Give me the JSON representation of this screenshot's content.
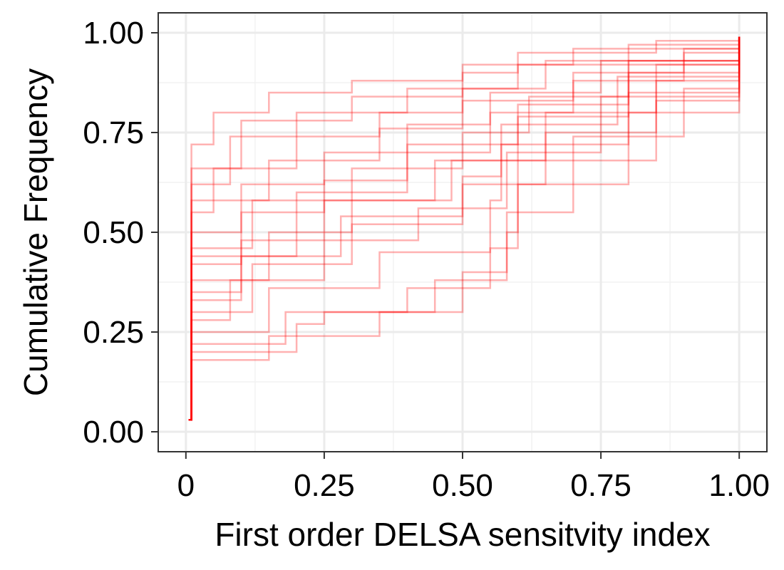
{
  "chart_data": {
    "type": "line",
    "subtype": "step-ecdf",
    "title": "",
    "xlabel": "First order DELSA sensitvity index",
    "ylabel": "Cumulative Frequency",
    "xlim": [
      -0.05,
      1.05
    ],
    "ylim": [
      -0.05,
      1.05
    ],
    "x_ticks": [
      {
        "value": 0,
        "label": "0"
      },
      {
        "value": 0.25,
        "label": "0.25"
      },
      {
        "value": 0.5,
        "label": "0.50"
      },
      {
        "value": 0.75,
        "label": "0.75"
      },
      {
        "value": 1.0,
        "label": "1.00"
      }
    ],
    "y_ticks": [
      {
        "value": 0,
        "label": "0.00"
      },
      {
        "value": 0.25,
        "label": "0.25"
      },
      {
        "value": 0.5,
        "label": "0.50"
      },
      {
        "value": 0.75,
        "label": "0.75"
      },
      {
        "value": 1.0,
        "label": "1.00"
      }
    ],
    "grid": true,
    "legend": "none",
    "line_color": "#ff0000",
    "line_opacity": 0.3,
    "series": [
      {
        "values": [
          [
            0.005,
            0.03
          ],
          [
            0.01,
            0.72
          ],
          [
            0.05,
            0.8
          ],
          [
            0.15,
            0.85
          ],
          [
            0.3,
            0.88
          ],
          [
            0.5,
            0.92
          ],
          [
            0.7,
            0.96
          ],
          [
            1.0,
            0.99
          ]
        ]
      },
      {
        "values": [
          [
            0.005,
            0.03
          ],
          [
            0.01,
            0.62
          ],
          [
            0.08,
            0.74
          ],
          [
            0.2,
            0.8
          ],
          [
            0.4,
            0.86
          ],
          [
            0.6,
            0.92
          ],
          [
            0.8,
            0.97
          ],
          [
            1.0,
            0.99
          ]
        ]
      },
      {
        "values": [
          [
            0.005,
            0.03
          ],
          [
            0.01,
            0.5
          ],
          [
            0.1,
            0.62
          ],
          [
            0.25,
            0.7
          ],
          [
            0.4,
            0.77
          ],
          [
            0.55,
            0.85
          ],
          [
            0.75,
            0.93
          ],
          [
            1.0,
            0.99
          ]
        ]
      },
      {
        "values": [
          [
            0.005,
            0.03
          ],
          [
            0.01,
            0.42
          ],
          [
            0.1,
            0.55
          ],
          [
            0.25,
            0.63
          ],
          [
            0.4,
            0.72
          ],
          [
            0.6,
            0.82
          ],
          [
            0.8,
            0.92
          ],
          [
            1.0,
            0.99
          ]
        ]
      },
      {
        "values": [
          [
            0.005,
            0.03
          ],
          [
            0.01,
            0.35
          ],
          [
            0.1,
            0.48
          ],
          [
            0.25,
            0.58
          ],
          [
            0.45,
            0.68
          ],
          [
            0.6,
            0.79
          ],
          [
            0.8,
            0.9
          ],
          [
            1.0,
            0.99
          ]
        ]
      },
      {
        "values": [
          [
            0.005,
            0.03
          ],
          [
            0.01,
            0.3
          ],
          [
            0.12,
            0.42
          ],
          [
            0.3,
            0.52
          ],
          [
            0.5,
            0.62
          ],
          [
            0.65,
            0.75
          ],
          [
            0.85,
            0.88
          ],
          [
            1.0,
            0.99
          ]
        ]
      },
      {
        "values": [
          [
            0.005,
            0.03
          ],
          [
            0.01,
            0.25
          ],
          [
            0.15,
            0.36
          ],
          [
            0.35,
            0.45
          ],
          [
            0.55,
            0.58
          ],
          [
            0.57,
            0.72
          ],
          [
            0.8,
            0.85
          ],
          [
            1.0,
            0.99
          ]
        ]
      },
      {
        "values": [
          [
            0.005,
            0.03
          ],
          [
            0.01,
            0.2
          ],
          [
            0.2,
            0.27
          ],
          [
            0.25,
            0.3
          ],
          [
            0.45,
            0.38
          ],
          [
            0.58,
            0.5
          ],
          [
            0.6,
            0.68
          ],
          [
            0.85,
            0.83
          ],
          [
            1.0,
            0.99
          ]
        ]
      },
      {
        "values": [
          [
            0.005,
            0.03
          ],
          [
            0.01,
            0.18
          ],
          [
            0.15,
            0.24
          ],
          [
            0.35,
            0.3
          ],
          [
            0.5,
            0.4
          ],
          [
            0.58,
            0.55
          ],
          [
            0.7,
            0.74
          ],
          [
            0.9,
            0.86
          ],
          [
            1.0,
            0.99
          ]
        ]
      },
      {
        "values": [
          [
            0.005,
            0.03
          ],
          [
            0.01,
            0.55
          ],
          [
            0.05,
            0.66
          ],
          [
            0.2,
            0.74
          ],
          [
            0.35,
            0.8
          ],
          [
            0.5,
            0.86
          ],
          [
            0.65,
            0.93
          ],
          [
            1.0,
            0.99
          ]
        ]
      },
      {
        "values": [
          [
            0.005,
            0.03
          ],
          [
            0.01,
            0.46
          ],
          [
            0.12,
            0.58
          ],
          [
            0.3,
            0.66
          ],
          [
            0.5,
            0.75
          ],
          [
            0.62,
            0.84
          ],
          [
            0.8,
            0.93
          ],
          [
            1.0,
            0.99
          ]
        ]
      },
      {
        "values": [
          [
            0.005,
            0.03
          ],
          [
            0.01,
            0.38
          ],
          [
            0.15,
            0.5
          ],
          [
            0.3,
            0.58
          ],
          [
            0.48,
            0.68
          ],
          [
            0.65,
            0.8
          ],
          [
            0.85,
            0.92
          ],
          [
            1.0,
            0.99
          ]
        ]
      },
      {
        "values": [
          [
            0.005,
            0.03
          ],
          [
            0.01,
            0.28
          ],
          [
            0.08,
            0.38
          ],
          [
            0.25,
            0.48
          ],
          [
            0.42,
            0.56
          ],
          [
            0.58,
            0.7
          ],
          [
            0.75,
            0.84
          ],
          [
            1.0,
            0.99
          ]
        ]
      },
      {
        "values": [
          [
            0.005,
            0.03
          ],
          [
            0.01,
            0.66
          ],
          [
            0.1,
            0.78
          ],
          [
            0.3,
            0.84
          ],
          [
            0.5,
            0.9
          ],
          [
            0.6,
            0.95
          ],
          [
            0.85,
            0.98
          ],
          [
            1.0,
            0.99
          ]
        ]
      },
      {
        "values": [
          [
            0.005,
            0.03
          ],
          [
            0.01,
            0.33
          ],
          [
            0.1,
            0.44
          ],
          [
            0.28,
            0.54
          ],
          [
            0.5,
            0.64
          ],
          [
            0.57,
            0.77
          ],
          [
            0.78,
            0.89
          ],
          [
            1.0,
            0.99
          ]
        ]
      },
      {
        "values": [
          [
            0.005,
            0.03
          ],
          [
            0.01,
            0.22
          ],
          [
            0.18,
            0.3
          ],
          [
            0.4,
            0.36
          ],
          [
            0.55,
            0.46
          ],
          [
            0.6,
            0.62
          ],
          [
            0.8,
            0.8
          ],
          [
            1.0,
            0.99
          ]
        ]
      },
      {
        "values": [
          [
            0.005,
            0.03
          ],
          [
            0.01,
            0.58
          ],
          [
            0.15,
            0.68
          ],
          [
            0.35,
            0.76
          ],
          [
            0.5,
            0.83
          ],
          [
            0.7,
            0.9
          ],
          [
            0.9,
            0.96
          ],
          [
            1.0,
            0.99
          ]
        ]
      },
      {
        "values": [
          [
            0.005,
            0.03
          ],
          [
            0.01,
            0.44
          ],
          [
            0.2,
            0.6
          ],
          [
            0.4,
            0.7
          ],
          [
            0.55,
            0.8
          ],
          [
            0.7,
            0.88
          ],
          [
            0.9,
            0.95
          ],
          [
            1.0,
            0.99
          ]
        ]
      }
    ]
  }
}
